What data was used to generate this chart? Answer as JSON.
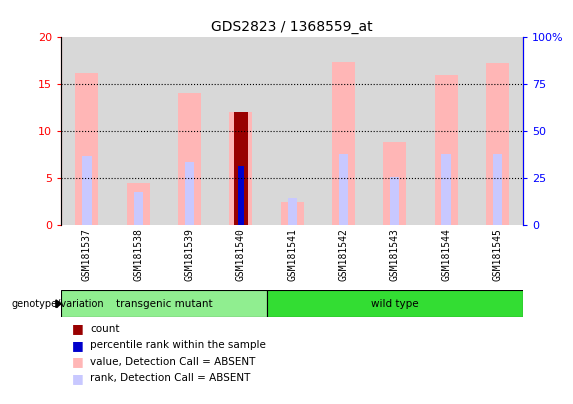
{
  "title": "GDS2823 / 1368559_at",
  "samples": [
    "GSM181537",
    "GSM181538",
    "GSM181539",
    "GSM181540",
    "GSM181541",
    "GSM181542",
    "GSM181543",
    "GSM181544",
    "GSM181545"
  ],
  "pink_bar_heights": [
    16.2,
    4.5,
    14.0,
    12.0,
    2.5,
    17.3,
    8.8,
    16.0,
    17.2
  ],
  "light_blue_bar_heights": [
    7.3,
    3.5,
    6.7,
    6.4,
    2.9,
    7.6,
    5.1,
    7.5,
    7.6
  ],
  "red_bar_heights": [
    0,
    0,
    0,
    12.0,
    0,
    0,
    0,
    0,
    0
  ],
  "blue_bar_heights": [
    0,
    0,
    0,
    6.3,
    0,
    0,
    0,
    0,
    0
  ],
  "ylim_left": [
    0,
    20
  ],
  "ylim_right": [
    0,
    100
  ],
  "yticks_left": [
    0,
    5,
    10,
    15,
    20
  ],
  "yticks_right": [
    0,
    25,
    50,
    75,
    100
  ],
  "ytick_labels_left": [
    "0",
    "5",
    "10",
    "15",
    "20"
  ],
  "ytick_labels_right": [
    "0",
    "25",
    "50",
    "75",
    "100%"
  ],
  "color_pink": "#FFB6B6",
  "color_lightblue": "#C8C8FF",
  "color_red": "#990000",
  "color_blue": "#0000CC",
  "color_col_bg": "#D8D8D8",
  "color_transgenic": "#90EE90",
  "color_wildtype": "#33DD33",
  "transgenic_indices": [
    0,
    1,
    2,
    3
  ],
  "wildtype_indices": [
    4,
    5,
    6,
    7,
    8
  ],
  "group_label_text": "genotype/variation",
  "transgenic_label": "transgenic mutant",
  "wildtype_label": "wild type",
  "legend_items": [
    "count",
    "percentile rank within the sample",
    "value, Detection Call = ABSENT",
    "rank, Detection Call = ABSENT"
  ],
  "legend_colors": [
    "#990000",
    "#0000CC",
    "#FFB6B6",
    "#C8C8FF"
  ],
  "dotted_lines": [
    5,
    10,
    15
  ]
}
